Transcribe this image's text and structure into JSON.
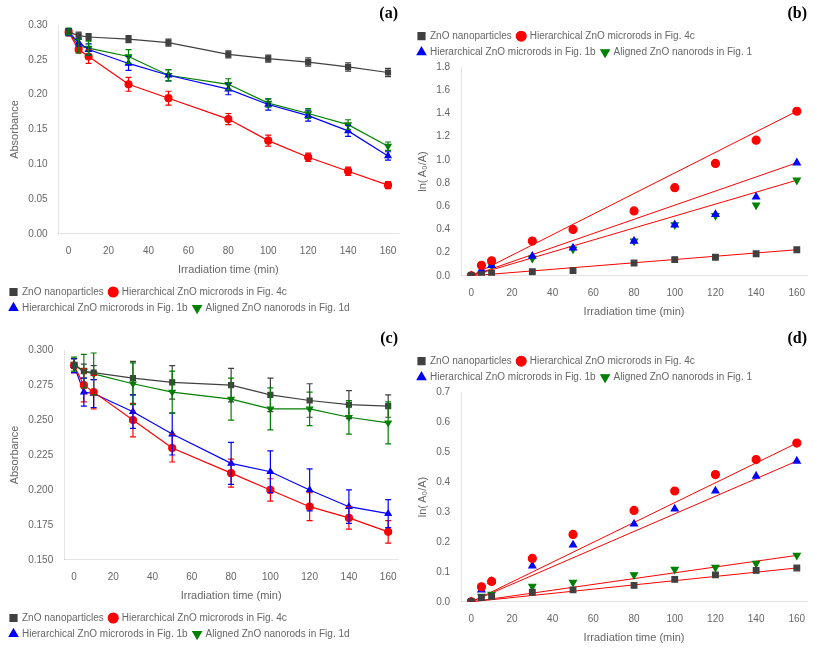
{
  "chart_data": [
    {
      "type": "line",
      "annotation": "(a)",
      "xlabel": "Irradiation time (min)",
      "ylabel": "Absorbance",
      "x": [
        0,
        5,
        10,
        30,
        50,
        80,
        100,
        120,
        140,
        160
      ],
      "xlim": [
        -5,
        165
      ],
      "xticks": [
        0,
        20,
        40,
        60,
        80,
        100,
        120,
        140,
        160
      ],
      "ylim": [
        0.0,
        0.3
      ],
      "yticks": [
        {
          "value": 0,
          "label": "0.00"
        },
        0.05,
        {
          "value": 0.1,
          "label": "0.10"
        },
        0.15,
        {
          "value": 0.2,
          "label": "0.20"
        },
        0.25,
        {
          "value": 0.3,
          "label": "0.30"
        }
      ],
      "grid": false,
      "legend": "lower left",
      "series": [
        {
          "name": "ZnO nanoparticles",
          "color": "#404040",
          "marker": "square",
          "line_style": "solid",
          "values": [
            0.29,
            0.285,
            0.283,
            0.28,
            0.275,
            0.258,
            0.252,
            0.247,
            0.24,
            0.232
          ],
          "errors": [
            0.005,
            0.005,
            0.005,
            0.005,
            0.005,
            0.005,
            0.005,
            0.006,
            0.006,
            0.006
          ]
        },
        {
          "name": "Hierarchical ZnO microrods in Fig. 4c",
          "color": "#FF0000",
          "marker": "circle",
          "line_style": "solid",
          "values": [
            0.29,
            0.265,
            0.255,
            0.215,
            0.195,
            0.165,
            0.134,
            0.11,
            0.09,
            0.07
          ],
          "errors": [
            0.005,
            0.005,
            0.01,
            0.01,
            0.01,
            0.008,
            0.008,
            0.006,
            0.006,
            0.005
          ]
        },
        {
          "name": "Hierarchical ZnO microrods in Fig. 1b",
          "color": "#0000FF",
          "marker": "triangle-up",
          "line_style": "solid",
          "values": [
            0.29,
            0.275,
            0.265,
            0.245,
            0.228,
            0.208,
            0.186,
            0.17,
            0.148,
            0.112
          ],
          "errors": [
            0.005,
            0.005,
            0.008,
            0.01,
            0.008,
            0.008,
            0.008,
            0.008,
            0.008,
            0.006
          ]
        },
        {
          "name": "Aligned ZnO nanorods in Fig. 1d",
          "color": "#008000",
          "marker": "triangle-down",
          "line_style": "solid",
          "values": [
            0.291,
            0.27,
            0.267,
            0.255,
            0.228,
            0.215,
            0.188,
            0.173,
            0.157,
            0.126
          ],
          "errors": [
            0.005,
            0.01,
            0.01,
            0.01,
            0.008,
            0.008,
            0.006,
            0.007,
            0.007,
            0.006
          ]
        }
      ]
    },
    {
      "type": "scatter",
      "annotation": "(b)",
      "xlabel": "Irradiation time (min)",
      "ylabel": "ln( A₀/A)",
      "x": [
        0,
        5,
        10,
        30,
        50,
        80,
        100,
        120,
        140,
        160
      ],
      "xlim": [
        -5,
        165
      ],
      "xticks": [
        0,
        20,
        40,
        60,
        80,
        100,
        120,
        140,
        160
      ],
      "ylim": [
        0.0,
        1.8
      ],
      "yticks": [
        {
          "value": 0,
          "label": "0.0"
        },
        0.2,
        0.4,
        0.6,
        0.8,
        {
          "value": 1,
          "label": "1.0"
        },
        1.2,
        1.4,
        1.6,
        1.8
      ],
      "grid": false,
      "legend": "upper left",
      "series": [
        {
          "name": "ZnO nanoparticles",
          "color": "#404040",
          "marker": "square",
          "line_style": "none",
          "values": [
            0.0,
            0.01,
            0.02,
            0.035,
            0.045,
            0.11,
            0.14,
            0.16,
            0.19,
            0.225
          ]
        },
        {
          "name": "Hierarchical ZnO microrods in Fig. 4c",
          "color": "#FF0000",
          "marker": "circle",
          "line_style": "none",
          "values": [
            0.0,
            0.09,
            0.13,
            0.3,
            0.4,
            0.56,
            0.76,
            0.97,
            1.17,
            1.42
          ]
        },
        {
          "name": "Hierarchical ZnO microrods in Fig. 1b",
          "color": "#0000FF",
          "marker": "triangle-up",
          "line_style": "none",
          "values": [
            0.0,
            0.05,
            0.09,
            0.17,
            0.24,
            0.3,
            0.44,
            0.53,
            0.68,
            0.975
          ]
        },
        {
          "name": "Aligned ZnO nanorods in Fig. 1",
          "color": "#008000",
          "marker": "triangle-down",
          "line_style": "none",
          "values": [
            0.0,
            0.07,
            0.09,
            0.15,
            0.23,
            0.3,
            0.44,
            0.52,
            0.61,
            0.825
          ]
        }
      ],
      "fit_lines": [
        {
          "x": [
            0,
            160
          ],
          "values": [
            0,
            0.225
          ],
          "color": "#FF0000",
          "line_style": "solid"
        },
        {
          "x": [
            0,
            160
          ],
          "values": [
            0,
            1.42
          ],
          "color": "#FF0000",
          "line_style": "solid"
        },
        {
          "x": [
            0,
            160
          ],
          "values": [
            0,
            0.975
          ],
          "color": "#FF0000",
          "line_style": "solid"
        },
        {
          "x": [
            0,
            160
          ],
          "values": [
            0,
            0.825
          ],
          "color": "#FF0000",
          "line_style": "solid"
        }
      ]
    },
    {
      "type": "line",
      "annotation": "(c)",
      "xlabel": "Irradiation time (min)",
      "ylabel": "Absorbance",
      "x": [
        0,
        5,
        10,
        30,
        50,
        80,
        100,
        120,
        140,
        160
      ],
      "xlim": [
        -5,
        165
      ],
      "xticks": [
        0,
        20,
        40,
        60,
        80,
        100,
        120,
        140,
        160
      ],
      "ylim": [
        0.15,
        0.3
      ],
      "yticks": [
        {
          "value": 0.15,
          "label": "0.150"
        },
        0.175,
        {
          "value": 0.2,
          "label": "0.200"
        },
        0.225,
        {
          "value": 0.25,
          "label": "0.250"
        },
        0.275,
        {
          "value": 0.3,
          "label": "0.300"
        }
      ],
      "grid": false,
      "legend": "lower left",
      "series": [
        {
          "name": "ZnO nanoparticles",
          "color": "#404040",
          "marker": "square",
          "line_style": "solid",
          "values": [
            0.289,
            0.285,
            0.284,
            0.28,
            0.277,
            0.275,
            0.268,
            0.264,
            0.261,
            0.26
          ],
          "errors": [
            0.005,
            0.005,
            0.005,
            0.012,
            0.012,
            0.012,
            0.012,
            0.012,
            0.01,
            0.008
          ]
        },
        {
          "name": "Hierarchical ZnO microrods in Fig. 4c",
          "color": "#FF0000",
          "marker": "circle",
          "line_style": "solid",
          "values": [
            0.289,
            0.275,
            0.27,
            0.25,
            0.23,
            0.212,
            0.2,
            0.188,
            0.18,
            0.17
          ],
          "errors": [
            0.005,
            0.012,
            0.012,
            0.012,
            0.01,
            0.01,
            0.008,
            0.01,
            0.008,
            0.008
          ]
        },
        {
          "name": "Hierarchical ZnO microrods in Fig. 1b",
          "color": "#0000FF",
          "marker": "triangle-up",
          "line_style": "solid",
          "values": [
            0.289,
            0.27,
            0.269,
            0.256,
            0.24,
            0.219,
            0.213,
            0.2,
            0.188,
            0.183
          ],
          "errors": [
            0.005,
            0.01,
            0.01,
            0.012,
            0.015,
            0.015,
            0.015,
            0.015,
            0.012,
            0.01
          ]
        },
        {
          "name": "Aligned ZnO nanorods in Fig. 1d",
          "color": "#008000",
          "marker": "triangle-down",
          "line_style": "solid",
          "values": [
            0.29,
            0.285,
            0.283,
            0.276,
            0.27,
            0.265,
            0.258,
            0.258,
            0.252,
            0.248
          ],
          "errors": [
            0.005,
            0.012,
            0.015,
            0.015,
            0.015,
            0.015,
            0.015,
            0.012,
            0.012,
            0.015
          ]
        }
      ]
    },
    {
      "type": "scatter",
      "annotation": "(d)",
      "xlabel": "Irradiation time (min)",
      "ylabel": "ln( A₀/A)",
      "x": [
        0,
        5,
        10,
        30,
        50,
        80,
        100,
        120,
        140,
        160
      ],
      "xlim": [
        -5,
        165
      ],
      "xticks": [
        0,
        20,
        40,
        60,
        80,
        100,
        120,
        140,
        160
      ],
      "ylim": [
        0.0,
        0.7
      ],
      "yticks": [
        {
          "value": 0,
          "label": "0.0"
        },
        0.1,
        0.2,
        0.3,
        0.4,
        0.5,
        0.6,
        0.7
      ],
      "grid": false,
      "legend": "upper left",
      "series": [
        {
          "name": "ZnO nanoparticles",
          "color": "#404040",
          "marker": "square",
          "line_style": "none",
          "values": [
            0.0,
            0.014,
            0.018,
            0.032,
            0.04,
            0.055,
            0.075,
            0.09,
            0.105,
            0.113
          ]
        },
        {
          "name": "Hierarchical ZnO microrods in Fig. 4c",
          "color": "#FF0000",
          "marker": "circle",
          "line_style": "none",
          "values": [
            0.0,
            0.05,
            0.068,
            0.145,
            0.225,
            0.305,
            0.37,
            0.425,
            0.475,
            0.53
          ]
        },
        {
          "name": "Hierarchical ZnO microrods in Fig. 1b",
          "color": "#0000FF",
          "marker": "triangle-up",
          "line_style": "none",
          "values": [
            0.0,
            0.04,
            0.068,
            0.12,
            0.19,
            0.26,
            0.31,
            0.37,
            0.42,
            0.47
          ]
        },
        {
          "name": "Aligned ZnO nanorods in Fig. 1",
          "color": "#008000",
          "marker": "triangle-down",
          "line_style": "none",
          "values": [
            0.0,
            0.018,
            0.025,
            0.052,
            0.065,
            0.09,
            0.108,
            0.115,
            0.128,
            0.155
          ]
        }
      ],
      "fit_lines": [
        {
          "x": [
            0,
            160
          ],
          "values": [
            0,
            0.113
          ],
          "color": "#FF0000",
          "line_style": "solid"
        },
        {
          "x": [
            0,
            160
          ],
          "values": [
            0,
            0.53
          ],
          "color": "#FF0000",
          "line_style": "solid"
        },
        {
          "x": [
            0,
            160
          ],
          "values": [
            0,
            0.47
          ],
          "color": "#FF0000",
          "line_style": "solid"
        },
        {
          "x": [
            0,
            160
          ],
          "values": [
            0,
            0.155
          ],
          "color": "#FF0000",
          "line_style": "solid"
        }
      ]
    }
  ]
}
